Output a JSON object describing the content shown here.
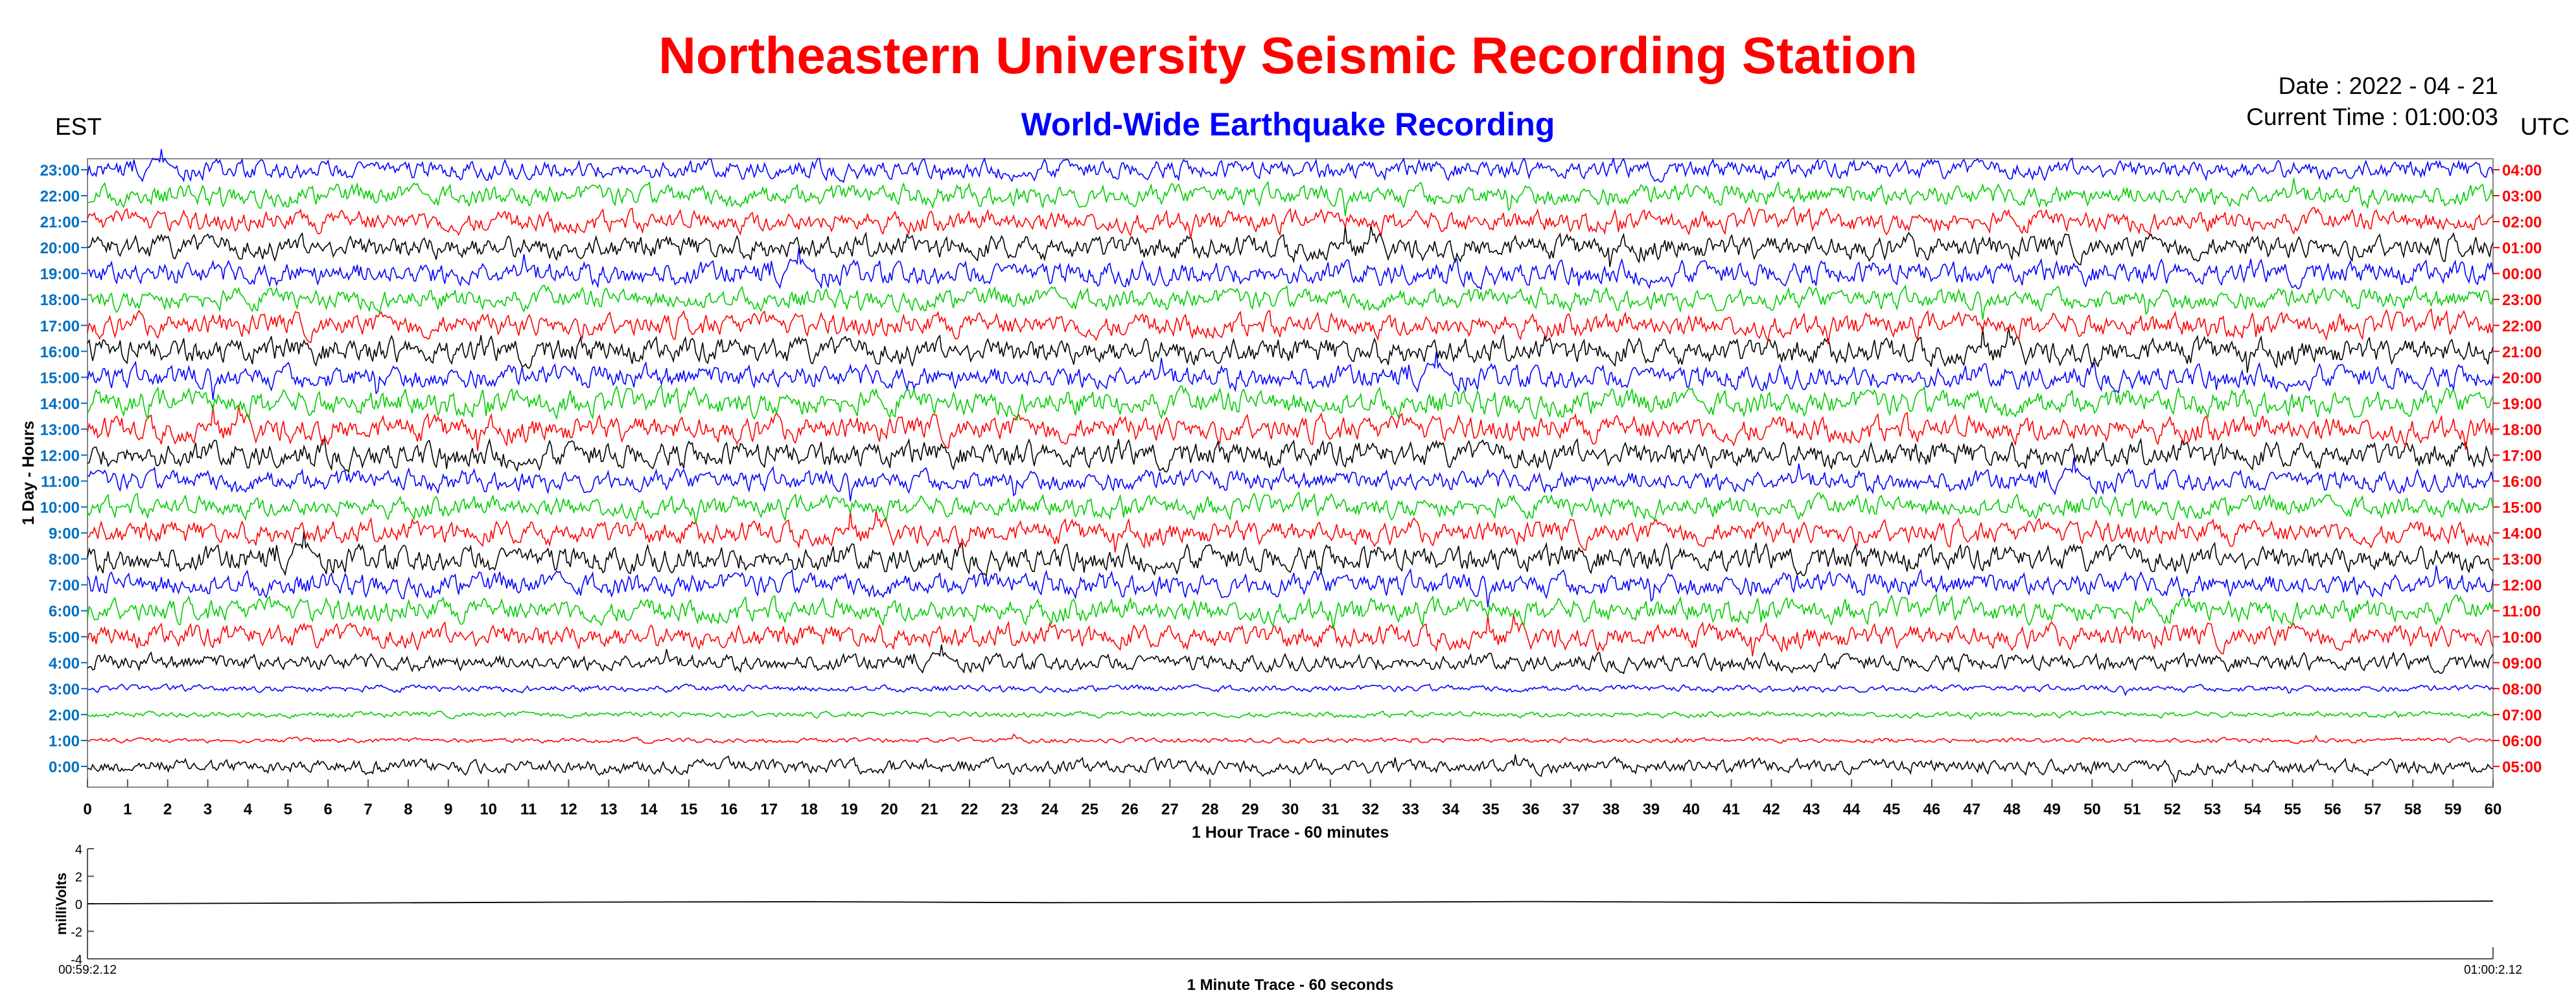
{
  "header": {
    "title": "Northeastern University Seismic Recording Station",
    "subtitle": "World-Wide Earthquake Recording",
    "date_text": "Date : 2022 - 04 - 21",
    "time_text": "Current Time : 01:00:03",
    "left_zone": "EST",
    "right_zone": "UTC"
  },
  "colors": {
    "title": "#ff0000",
    "subtitle": "#0000ff",
    "left_ticks": "#0070c0",
    "right_ticks": "#ff0000",
    "trace_cycle": [
      "#000000",
      "#ff0000",
      "#00cc00",
      "#0000ff"
    ]
  },
  "chart_data": [
    {
      "type": "line",
      "name": "helicorder",
      "xlabel": "1 Hour Trace - 60 minutes",
      "ylabel": "1 Day - Hours",
      "xlim": [
        0,
        60
      ],
      "xticks": [
        0,
        1,
        2,
        3,
        4,
        5,
        6,
        7,
        8,
        9,
        10,
        11,
        12,
        13,
        14,
        15,
        16,
        17,
        18,
        19,
        20,
        21,
        22,
        23,
        24,
        25,
        26,
        27,
        28,
        29,
        30,
        31,
        32,
        33,
        34,
        35,
        36,
        37,
        38,
        39,
        40,
        41,
        42,
        43,
        44,
        45,
        46,
        47,
        48,
        49,
        50,
        51,
        52,
        53,
        54,
        55,
        56,
        57,
        58,
        59,
        60
      ],
      "rows": [
        {
          "est": "0:00",
          "utc": "05:00",
          "amp": 0.3
        },
        {
          "est": "1:00",
          "utc": "06:00",
          "amp": 0.1
        },
        {
          "est": "2:00",
          "utc": "07:00",
          "amp": 0.12
        },
        {
          "est": "3:00",
          "utc": "08:00",
          "amp": 0.14
        },
        {
          "est": "4:00",
          "utc": "09:00",
          "amp": 0.35
        },
        {
          "est": "5:00",
          "utc": "10:00",
          "amp": 0.5
        },
        {
          "est": "6:00",
          "utc": "11:00",
          "amp": 0.5
        },
        {
          "est": "7:00",
          "utc": "12:00",
          "amp": 0.5
        },
        {
          "est": "8:00",
          "utc": "13:00",
          "amp": 0.55
        },
        {
          "est": "9:00",
          "utc": "14:00",
          "amp": 0.5
        },
        {
          "est": "10:00",
          "utc": "15:00",
          "amp": 0.45
        },
        {
          "est": "11:00",
          "utc": "16:00",
          "amp": 0.45
        },
        {
          "est": "12:00",
          "utc": "17:00",
          "amp": 0.55
        },
        {
          "est": "13:00",
          "utc": "18:00",
          "amp": 0.55
        },
        {
          "est": "14:00",
          "utc": "19:00",
          "amp": 0.55
        },
        {
          "est": "15:00",
          "utc": "20:00",
          "amp": 0.5
        },
        {
          "est": "16:00",
          "utc": "21:00",
          "amp": 0.55
        },
        {
          "est": "17:00",
          "utc": "22:00",
          "amp": 0.5
        },
        {
          "est": "18:00",
          "utc": "23:00",
          "amp": 0.45
        },
        {
          "est": "19:00",
          "utc": "00:00",
          "amp": 0.5
        },
        {
          "est": "20:00",
          "utc": "01:00",
          "amp": 0.5
        },
        {
          "est": "21:00",
          "utc": "02:00",
          "amp": 0.45
        },
        {
          "est": "22:00",
          "utc": "03:00",
          "amp": 0.45
        },
        {
          "est": "23:00",
          "utc": "04:00",
          "amp": 0.4
        }
      ]
    },
    {
      "type": "line",
      "name": "minute-trace",
      "xlabel": "1 Minute Trace  - 60 seconds",
      "ylabel": "milliVolts",
      "ylim": [
        -4,
        4
      ],
      "yticks": [
        4,
        2,
        0,
        -2,
        -4
      ],
      "x_start_label": "00:59:2.12",
      "x_end_label": "01:00:2.12",
      "x": [
        0,
        6,
        12,
        18,
        24,
        30,
        36,
        42,
        48,
        54,
        60
      ],
      "y": [
        0.0,
        0.05,
        0.12,
        0.15,
        0.08,
        0.1,
        0.16,
        0.1,
        0.05,
        0.12,
        0.2
      ]
    }
  ]
}
